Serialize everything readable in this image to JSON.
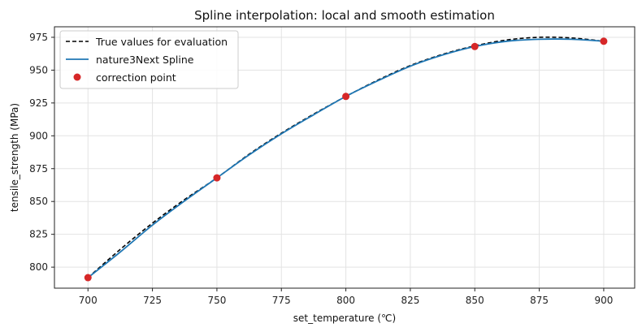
{
  "chart_data": {
    "type": "line",
    "title": "Spline interpolation: local and smooth estimation",
    "xlabel": "set_temperature (℃)",
    "ylabel": "tensile_strength (MPa)",
    "xlim": [
      687,
      912
    ],
    "ylim": [
      784,
      983
    ],
    "xticks": [
      700,
      725,
      750,
      775,
      800,
      825,
      850,
      875,
      900
    ],
    "yticks": [
      800,
      825,
      850,
      875,
      900,
      925,
      950,
      975
    ],
    "grid": true,
    "legend_position": "top-left",
    "series": [
      {
        "name": "True values for evaluation",
        "kind": "line",
        "style": "dashed",
        "color": "#000000",
        "x": [
          700,
          712.5,
          725,
          737.5,
          750,
          762.5,
          775,
          787.5,
          800,
          812.5,
          825,
          837.5,
          850,
          862.5,
          875,
          887.5,
          900
        ],
        "y": [
          792,
          813.5,
          833.5,
          851.5,
          868,
          886,
          902,
          916.5,
          930,
          942.5,
          953.5,
          962,
          968.5,
          973,
          975,
          974.5,
          972
        ]
      },
      {
        "name": "nature3Next Spline",
        "kind": "line",
        "style": "solid",
        "color": "#1f77b4",
        "x": [
          700,
          712.5,
          725,
          737.5,
          750,
          762.5,
          775,
          787.5,
          800,
          812.5,
          825,
          837.5,
          850,
          862.5,
          875,
          887.5,
          900
        ],
        "y": [
          792,
          811.5,
          832,
          850.5,
          868,
          885.5,
          901.5,
          916,
          930,
          942,
          953,
          961.5,
          968,
          972,
          973.5,
          973.5,
          972
        ]
      },
      {
        "name": "correction point",
        "kind": "scatter",
        "color": "#d62728",
        "x": [
          700,
          750,
          800,
          850,
          900
        ],
        "y": [
          792,
          868,
          930,
          968,
          972
        ]
      }
    ]
  }
}
